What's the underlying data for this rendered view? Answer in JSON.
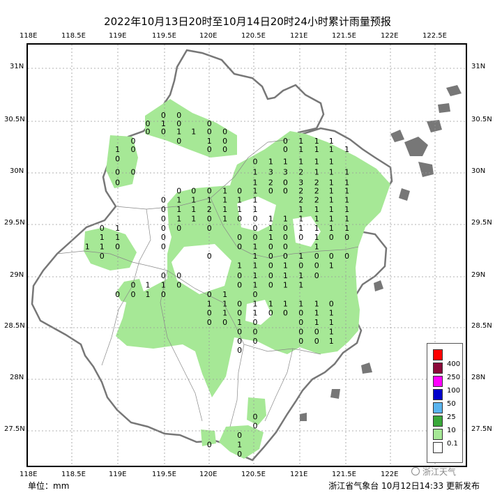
{
  "title": "2022年10月13日20时至10月14日20时24小时累计雨量预报",
  "unit_label": "单位：mm",
  "publisher": "浙江省气象台 10月12日14:33 更新发布",
  "watermark": "浙江天气",
  "lon_labels": [
    "118E",
    "118.5E",
    "119E",
    "119.5E",
    "120E",
    "120.5E",
    "121E",
    "121.5E",
    "122E",
    "122.5E"
  ],
  "lat_labels": [
    "31N",
    "30.5N",
    "30N",
    "29.5N",
    "29N",
    "28.5N",
    "28N",
    "27.5N"
  ],
  "legend": {
    "items": [
      {
        "label": "400",
        "color": "#ff0000"
      },
      {
        "label": "250",
        "color": "#8b0a3a"
      },
      {
        "label": "100",
        "color": "#ff00ff"
      },
      {
        "label": "50",
        "color": "#0000cc"
      },
      {
        "label": "25",
        "color": "#5ab4ee"
      },
      {
        "label": "10",
        "color": "#3aa83a"
      },
      {
        "label": "0.1",
        "color": "#a6e896"
      },
      {
        "label": "",
        "color": "#ffffff"
      }
    ]
  },
  "colors": {
    "province_fill": "#ffffff",
    "rain_light": "#a6e896",
    "boundary": "#777777",
    "grid": "#999999"
  },
  "station_values": [
    {
      "lon": 119.5,
      "lat": 30.55,
      "v": "0"
    },
    {
      "lon": 119.67,
      "lat": 30.55,
      "v": "0"
    },
    {
      "lon": 119.33,
      "lat": 30.47,
      "v": "0"
    },
    {
      "lon": 119.5,
      "lat": 30.47,
      "v": "1"
    },
    {
      "lon": 119.67,
      "lat": 30.47,
      "v": "0"
    },
    {
      "lon": 120.0,
      "lat": 30.47,
      "v": "0"
    },
    {
      "lon": 119.33,
      "lat": 30.39,
      "v": "0"
    },
    {
      "lon": 119.5,
      "lat": 30.39,
      "v": "0"
    },
    {
      "lon": 119.67,
      "lat": 30.39,
      "v": "1"
    },
    {
      "lon": 119.83,
      "lat": 30.39,
      "v": "1"
    },
    {
      "lon": 120.0,
      "lat": 30.39,
      "v": "0"
    },
    {
      "lon": 120.17,
      "lat": 30.39,
      "v": "0"
    },
    {
      "lon": 119.17,
      "lat": 30.3,
      "v": "0"
    },
    {
      "lon": 119.67,
      "lat": 30.3,
      "v": "0"
    },
    {
      "lon": 120.0,
      "lat": 30.3,
      "v": "1"
    },
    {
      "lon": 120.17,
      "lat": 30.3,
      "v": "0"
    },
    {
      "lon": 119.0,
      "lat": 30.22,
      "v": "1"
    },
    {
      "lon": 119.17,
      "lat": 30.22,
      "v": "0"
    },
    {
      "lon": 120.0,
      "lat": 30.22,
      "v": "0"
    },
    {
      "lon": 120.17,
      "lat": 30.22,
      "v": "0"
    },
    {
      "lon": 119.0,
      "lat": 30.13,
      "v": "0"
    },
    {
      "lon": 119.0,
      "lat": 30.0,
      "v": "0"
    },
    {
      "lon": 119.17,
      "lat": 30.0,
      "v": "0"
    },
    {
      "lon": 119.0,
      "lat": 29.9,
      "v": "0"
    },
    {
      "lon": 120.83,
      "lat": 30.3,
      "v": "0"
    },
    {
      "lon": 121.0,
      "lat": 30.3,
      "v": "1"
    },
    {
      "lon": 121.17,
      "lat": 30.3,
      "v": "1"
    },
    {
      "lon": 121.33,
      "lat": 30.3,
      "v": "1"
    },
    {
      "lon": 120.83,
      "lat": 30.22,
      "v": "0"
    },
    {
      "lon": 121.0,
      "lat": 30.22,
      "v": "1"
    },
    {
      "lon": 121.17,
      "lat": 30.22,
      "v": "1"
    },
    {
      "lon": 121.33,
      "lat": 30.22,
      "v": "1"
    },
    {
      "lon": 121.5,
      "lat": 30.22,
      "v": "1"
    },
    {
      "lon": 120.5,
      "lat": 30.1,
      "v": "0"
    },
    {
      "lon": 120.67,
      "lat": 30.1,
      "v": "1"
    },
    {
      "lon": 120.83,
      "lat": 30.1,
      "v": "1"
    },
    {
      "lon": 121.0,
      "lat": 30.1,
      "v": "1"
    },
    {
      "lon": 121.17,
      "lat": 30.1,
      "v": "1"
    },
    {
      "lon": 121.33,
      "lat": 30.1,
      "v": "1"
    },
    {
      "lon": 120.5,
      "lat": 30.0,
      "v": "1"
    },
    {
      "lon": 120.67,
      "lat": 30.0,
      "v": "3"
    },
    {
      "lon": 120.83,
      "lat": 30.0,
      "v": "3"
    },
    {
      "lon": 121.0,
      "lat": 30.0,
      "v": "2"
    },
    {
      "lon": 121.17,
      "lat": 30.0,
      "v": "1"
    },
    {
      "lon": 121.33,
      "lat": 30.0,
      "v": "1"
    },
    {
      "lon": 121.5,
      "lat": 30.0,
      "v": "1"
    },
    {
      "lon": 120.5,
      "lat": 29.9,
      "v": "1"
    },
    {
      "lon": 120.67,
      "lat": 29.9,
      "v": "2"
    },
    {
      "lon": 120.83,
      "lat": 29.9,
      "v": "0"
    },
    {
      "lon": 121.0,
      "lat": 29.9,
      "v": "3"
    },
    {
      "lon": 121.17,
      "lat": 29.9,
      "v": "2"
    },
    {
      "lon": 121.33,
      "lat": 29.9,
      "v": "1"
    },
    {
      "lon": 121.5,
      "lat": 29.9,
      "v": "1"
    },
    {
      "lon": 119.67,
      "lat": 29.82,
      "v": "0"
    },
    {
      "lon": 119.83,
      "lat": 29.82,
      "v": "0"
    },
    {
      "lon": 120.0,
      "lat": 29.82,
      "v": "0"
    },
    {
      "lon": 120.17,
      "lat": 29.82,
      "v": "1"
    },
    {
      "lon": 120.33,
      "lat": 29.82,
      "v": "0"
    },
    {
      "lon": 120.5,
      "lat": 29.82,
      "v": "1"
    },
    {
      "lon": 120.67,
      "lat": 29.82,
      "v": "0"
    },
    {
      "lon": 120.83,
      "lat": 29.82,
      "v": "0"
    },
    {
      "lon": 121.0,
      "lat": 29.82,
      "v": "2"
    },
    {
      "lon": 121.17,
      "lat": 29.82,
      "v": "2"
    },
    {
      "lon": 121.33,
      "lat": 29.82,
      "v": "1"
    },
    {
      "lon": 121.5,
      "lat": 29.82,
      "v": "1"
    },
    {
      "lon": 119.5,
      "lat": 29.73,
      "v": "0"
    },
    {
      "lon": 119.67,
      "lat": 29.73,
      "v": "1"
    },
    {
      "lon": 119.83,
      "lat": 29.73,
      "v": "1"
    },
    {
      "lon": 120.0,
      "lat": 29.73,
      "v": "1"
    },
    {
      "lon": 120.17,
      "lat": 29.73,
      "v": "1"
    },
    {
      "lon": 120.33,
      "lat": 29.73,
      "v": "1"
    },
    {
      "lon": 120.5,
      "lat": 29.73,
      "v": "1"
    },
    {
      "lon": 121.0,
      "lat": 29.73,
      "v": "2"
    },
    {
      "lon": 121.17,
      "lat": 29.73,
      "v": "2"
    },
    {
      "lon": 121.33,
      "lat": 29.73,
      "v": "1"
    },
    {
      "lon": 121.5,
      "lat": 29.73,
      "v": "1"
    },
    {
      "lon": 119.5,
      "lat": 29.64,
      "v": "0"
    },
    {
      "lon": 119.67,
      "lat": 29.64,
      "v": "1"
    },
    {
      "lon": 119.83,
      "lat": 29.64,
      "v": "1"
    },
    {
      "lon": 120.0,
      "lat": 29.64,
      "v": "2"
    },
    {
      "lon": 120.17,
      "lat": 29.64,
      "v": "1"
    },
    {
      "lon": 120.33,
      "lat": 29.64,
      "v": "1"
    },
    {
      "lon": 120.5,
      "lat": 29.64,
      "v": "1"
    },
    {
      "lon": 121.0,
      "lat": 29.64,
      "v": "1"
    },
    {
      "lon": 121.17,
      "lat": 29.64,
      "v": "1"
    },
    {
      "lon": 121.33,
      "lat": 29.64,
      "v": "1"
    },
    {
      "lon": 121.5,
      "lat": 29.64,
      "v": "1"
    },
    {
      "lon": 119.5,
      "lat": 29.55,
      "v": "0"
    },
    {
      "lon": 119.67,
      "lat": 29.55,
      "v": "1"
    },
    {
      "lon": 119.83,
      "lat": 29.55,
      "v": "1"
    },
    {
      "lon": 120.0,
      "lat": 29.55,
      "v": "0"
    },
    {
      "lon": 120.17,
      "lat": 29.55,
      "v": "1"
    },
    {
      "lon": 120.33,
      "lat": 29.55,
      "v": "0"
    },
    {
      "lon": 120.5,
      "lat": 29.55,
      "v": "0"
    },
    {
      "lon": 120.67,
      "lat": 29.55,
      "v": "1"
    },
    {
      "lon": 120.83,
      "lat": 29.55,
      "v": "1"
    },
    {
      "lon": 121.0,
      "lat": 29.55,
      "v": "1"
    },
    {
      "lon": 121.17,
      "lat": 29.55,
      "v": "1"
    },
    {
      "lon": 121.33,
      "lat": 29.55,
      "v": "1"
    },
    {
      "lon": 121.5,
      "lat": 29.55,
      "v": "1"
    },
    {
      "lon": 119.5,
      "lat": 29.46,
      "v": "0"
    },
    {
      "lon": 119.67,
      "lat": 29.46,
      "v": "0"
    },
    {
      "lon": 120.0,
      "lat": 29.46,
      "v": "0"
    },
    {
      "lon": 120.5,
      "lat": 29.46,
      "v": "0"
    },
    {
      "lon": 120.67,
      "lat": 29.46,
      "v": "1"
    },
    {
      "lon": 120.83,
      "lat": 29.46,
      "v": "0"
    },
    {
      "lon": 121.0,
      "lat": 29.46,
      "v": "1"
    },
    {
      "lon": 121.17,
      "lat": 29.46,
      "v": "1"
    },
    {
      "lon": 121.33,
      "lat": 29.46,
      "v": "1"
    },
    {
      "lon": 121.5,
      "lat": 29.46,
      "v": "1"
    },
    {
      "lon": 118.83,
      "lat": 29.46,
      "v": "0"
    },
    {
      "lon": 119.0,
      "lat": 29.46,
      "v": "1"
    },
    {
      "lon": 118.83,
      "lat": 29.37,
      "v": "1"
    },
    {
      "lon": 119.0,
      "lat": 29.37,
      "v": "1"
    },
    {
      "lon": 119.5,
      "lat": 29.37,
      "v": "0"
    },
    {
      "lon": 118.67,
      "lat": 29.28,
      "v": "1"
    },
    {
      "lon": 118.83,
      "lat": 29.28,
      "v": "1"
    },
    {
      "lon": 119.0,
      "lat": 29.28,
      "v": "0"
    },
    {
      "lon": 119.5,
      "lat": 29.28,
      "v": "0"
    },
    {
      "lon": 118.83,
      "lat": 29.19,
      "v": "0"
    },
    {
      "lon": 120.33,
      "lat": 29.37,
      "v": "0"
    },
    {
      "lon": 120.5,
      "lat": 29.37,
      "v": "0"
    },
    {
      "lon": 120.67,
      "lat": 29.37,
      "v": "1"
    },
    {
      "lon": 120.83,
      "lat": 29.37,
      "v": "0"
    },
    {
      "lon": 121.0,
      "lat": 29.37,
      "v": "0"
    },
    {
      "lon": 121.17,
      "lat": 29.37,
      "v": "1"
    },
    {
      "lon": 121.33,
      "lat": 29.37,
      "v": "0"
    },
    {
      "lon": 121.5,
      "lat": 29.37,
      "v": "0"
    },
    {
      "lon": 120.33,
      "lat": 29.28,
      "v": "0"
    },
    {
      "lon": 120.5,
      "lat": 29.28,
      "v": "1"
    },
    {
      "lon": 120.67,
      "lat": 29.28,
      "v": "0"
    },
    {
      "lon": 120.83,
      "lat": 29.28,
      "v": "0"
    },
    {
      "lon": 121.17,
      "lat": 29.28,
      "v": "1"
    },
    {
      "lon": 120.0,
      "lat": 29.19,
      "v": "0"
    },
    {
      "lon": 120.5,
      "lat": 29.19,
      "v": "1"
    },
    {
      "lon": 120.67,
      "lat": 29.19,
      "v": "0"
    },
    {
      "lon": 120.83,
      "lat": 29.19,
      "v": "0"
    },
    {
      "lon": 121.0,
      "lat": 29.19,
      "v": "1"
    },
    {
      "lon": 121.17,
      "lat": 29.19,
      "v": "0"
    },
    {
      "lon": 121.33,
      "lat": 29.19,
      "v": "0"
    },
    {
      "lon": 121.5,
      "lat": 29.19,
      "v": "0"
    },
    {
      "lon": 120.33,
      "lat": 29.1,
      "v": "1"
    },
    {
      "lon": 120.5,
      "lat": 29.1,
      "v": "1"
    },
    {
      "lon": 120.67,
      "lat": 29.1,
      "v": "0"
    },
    {
      "lon": 120.83,
      "lat": 29.1,
      "v": "1"
    },
    {
      "lon": 121.0,
      "lat": 29.1,
      "v": "0"
    },
    {
      "lon": 121.17,
      "lat": 29.1,
      "v": "0"
    },
    {
      "lon": 121.33,
      "lat": 29.1,
      "v": "1"
    },
    {
      "lon": 119.5,
      "lat": 29.0,
      "v": "0"
    },
    {
      "lon": 119.67,
      "lat": 29.0,
      "v": "0"
    },
    {
      "lon": 120.33,
      "lat": 29.0,
      "v": "0"
    },
    {
      "lon": 120.5,
      "lat": 29.0,
      "v": "1"
    },
    {
      "lon": 120.67,
      "lat": 29.0,
      "v": "0"
    },
    {
      "lon": 120.83,
      "lat": 29.0,
      "v": "1"
    },
    {
      "lon": 121.0,
      "lat": 29.0,
      "v": "1"
    },
    {
      "lon": 121.17,
      "lat": 29.0,
      "v": "0"
    },
    {
      "lon": 119.17,
      "lat": 28.91,
      "v": "0"
    },
    {
      "lon": 119.33,
      "lat": 28.91,
      "v": "1"
    },
    {
      "lon": 119.5,
      "lat": 28.91,
      "v": "1"
    },
    {
      "lon": 119.67,
      "lat": 28.91,
      "v": "0"
    },
    {
      "lon": 120.33,
      "lat": 28.91,
      "v": "0"
    },
    {
      "lon": 120.5,
      "lat": 28.91,
      "v": "1"
    },
    {
      "lon": 120.67,
      "lat": 28.91,
      "v": "0"
    },
    {
      "lon": 120.83,
      "lat": 28.91,
      "v": "1"
    },
    {
      "lon": 121.0,
      "lat": 28.91,
      "v": "1"
    },
    {
      "lon": 119.0,
      "lat": 28.82,
      "v": "0"
    },
    {
      "lon": 119.17,
      "lat": 28.82,
      "v": "0"
    },
    {
      "lon": 119.33,
      "lat": 28.82,
      "v": "1"
    },
    {
      "lon": 119.5,
      "lat": 28.82,
      "v": "0"
    },
    {
      "lon": 120.0,
      "lat": 28.82,
      "v": "0"
    },
    {
      "lon": 120.17,
      "lat": 28.82,
      "v": "1"
    },
    {
      "lon": 120.5,
      "lat": 28.82,
      "v": "0"
    },
    {
      "lon": 120.0,
      "lat": 28.73,
      "v": "1"
    },
    {
      "lon": 120.17,
      "lat": 28.73,
      "v": "1"
    },
    {
      "lon": 120.33,
      "lat": 28.73,
      "v": "0"
    },
    {
      "lon": 120.5,
      "lat": 28.73,
      "v": "1"
    },
    {
      "lon": 120.67,
      "lat": 28.73,
      "v": "1"
    },
    {
      "lon": 120.83,
      "lat": 28.73,
      "v": "1"
    },
    {
      "lon": 121.0,
      "lat": 28.73,
      "v": "1"
    },
    {
      "lon": 121.17,
      "lat": 28.73,
      "v": "1"
    },
    {
      "lon": 121.33,
      "lat": 28.73,
      "v": "0"
    },
    {
      "lon": 120.0,
      "lat": 28.64,
      "v": "0"
    },
    {
      "lon": 120.17,
      "lat": 28.64,
      "v": "1"
    },
    {
      "lon": 120.33,
      "lat": 28.64,
      "v": "0"
    },
    {
      "lon": 120.5,
      "lat": 28.64,
      "v": "1"
    },
    {
      "lon": 120.67,
      "lat": 28.64,
      "v": "0"
    },
    {
      "lon": 120.83,
      "lat": 28.64,
      "v": "0"
    },
    {
      "lon": 121.0,
      "lat": 28.64,
      "v": "0"
    },
    {
      "lon": 121.17,
      "lat": 28.64,
      "v": "1"
    },
    {
      "lon": 121.33,
      "lat": 28.64,
      "v": "1"
    },
    {
      "lon": 120.0,
      "lat": 28.55,
      "v": "0"
    },
    {
      "lon": 120.17,
      "lat": 28.55,
      "v": "0"
    },
    {
      "lon": 120.33,
      "lat": 28.55,
      "v": "1"
    },
    {
      "lon": 120.5,
      "lat": 28.55,
      "v": "0"
    },
    {
      "lon": 121.0,
      "lat": 28.55,
      "v": "0"
    },
    {
      "lon": 121.17,
      "lat": 28.55,
      "v": "1"
    },
    {
      "lon": 121.33,
      "lat": 28.55,
      "v": "1"
    },
    {
      "lon": 120.33,
      "lat": 28.46,
      "v": "0"
    },
    {
      "lon": 120.5,
      "lat": 28.46,
      "v": "0"
    },
    {
      "lon": 121.0,
      "lat": 28.46,
      "v": "0"
    },
    {
      "lon": 121.17,
      "lat": 28.46,
      "v": "0"
    },
    {
      "lon": 121.33,
      "lat": 28.46,
      "v": "1"
    },
    {
      "lon": 120.33,
      "lat": 28.37,
      "v": "0"
    },
    {
      "lon": 120.5,
      "lat": 28.37,
      "v": "0"
    },
    {
      "lon": 121.0,
      "lat": 28.37,
      "v": "0"
    },
    {
      "lon": 121.17,
      "lat": 28.37,
      "v": "0"
    },
    {
      "lon": 121.33,
      "lat": 28.37,
      "v": "1"
    },
    {
      "lon": 120.33,
      "lat": 28.28,
      "v": "0"
    },
    {
      "lon": 120.5,
      "lat": 27.64,
      "v": "0"
    },
    {
      "lon": 120.5,
      "lat": 27.55,
      "v": "0"
    },
    {
      "lon": 120.33,
      "lat": 27.46,
      "v": "0"
    },
    {
      "lon": 120.0,
      "lat": 27.37,
      "v": "0"
    },
    {
      "lon": 120.33,
      "lat": 27.37,
      "v": "1"
    },
    {
      "lon": 120.33,
      "lat": 27.28,
      "v": "0"
    }
  ]
}
